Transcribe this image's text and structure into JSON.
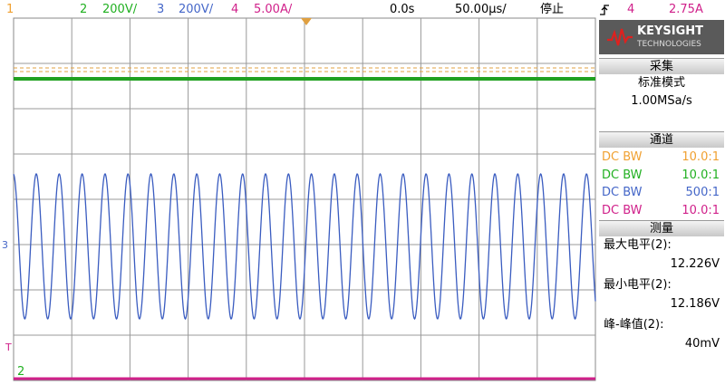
{
  "top_bar": {
    "ch1": "1",
    "ch2": "2",
    "ch2_scale": "200V/",
    "ch3": "3",
    "ch3_scale": "200V/",
    "ch4": "4",
    "ch4_scale": "5.00A/",
    "delay": "0.0s",
    "timebase": "50.00μs/",
    "status": "停止",
    "trigger_source": "4",
    "trigger_level": "2.75A"
  },
  "logo": {
    "name": "KEYSIGHT",
    "sub": "TECHNOLOGIES"
  },
  "acquisition": {
    "title": "采集",
    "mode": "标准模式",
    "rate": "1.00MSa/s"
  },
  "channels": {
    "title": "通道",
    "rows": [
      {
        "coupling": "DC BW",
        "probe": "10.0:1"
      },
      {
        "coupling": "DC BW",
        "probe": "10.0:1"
      },
      {
        "coupling": "DC BW",
        "probe": "500:1"
      },
      {
        "coupling": "DC BW",
        "probe": "10.0:1"
      }
    ]
  },
  "measurements": {
    "title": "测量",
    "items": [
      {
        "label": "最大电平(2):",
        "value": "12.226V"
      },
      {
        "label": "最小电平(2):",
        "value": "12.186V"
      },
      {
        "label": "峰-峰值(2):",
        "value": "40mV"
      }
    ]
  },
  "markers": {
    "ch3": "3",
    "trigger": "T",
    "ch2": "2"
  }
}
